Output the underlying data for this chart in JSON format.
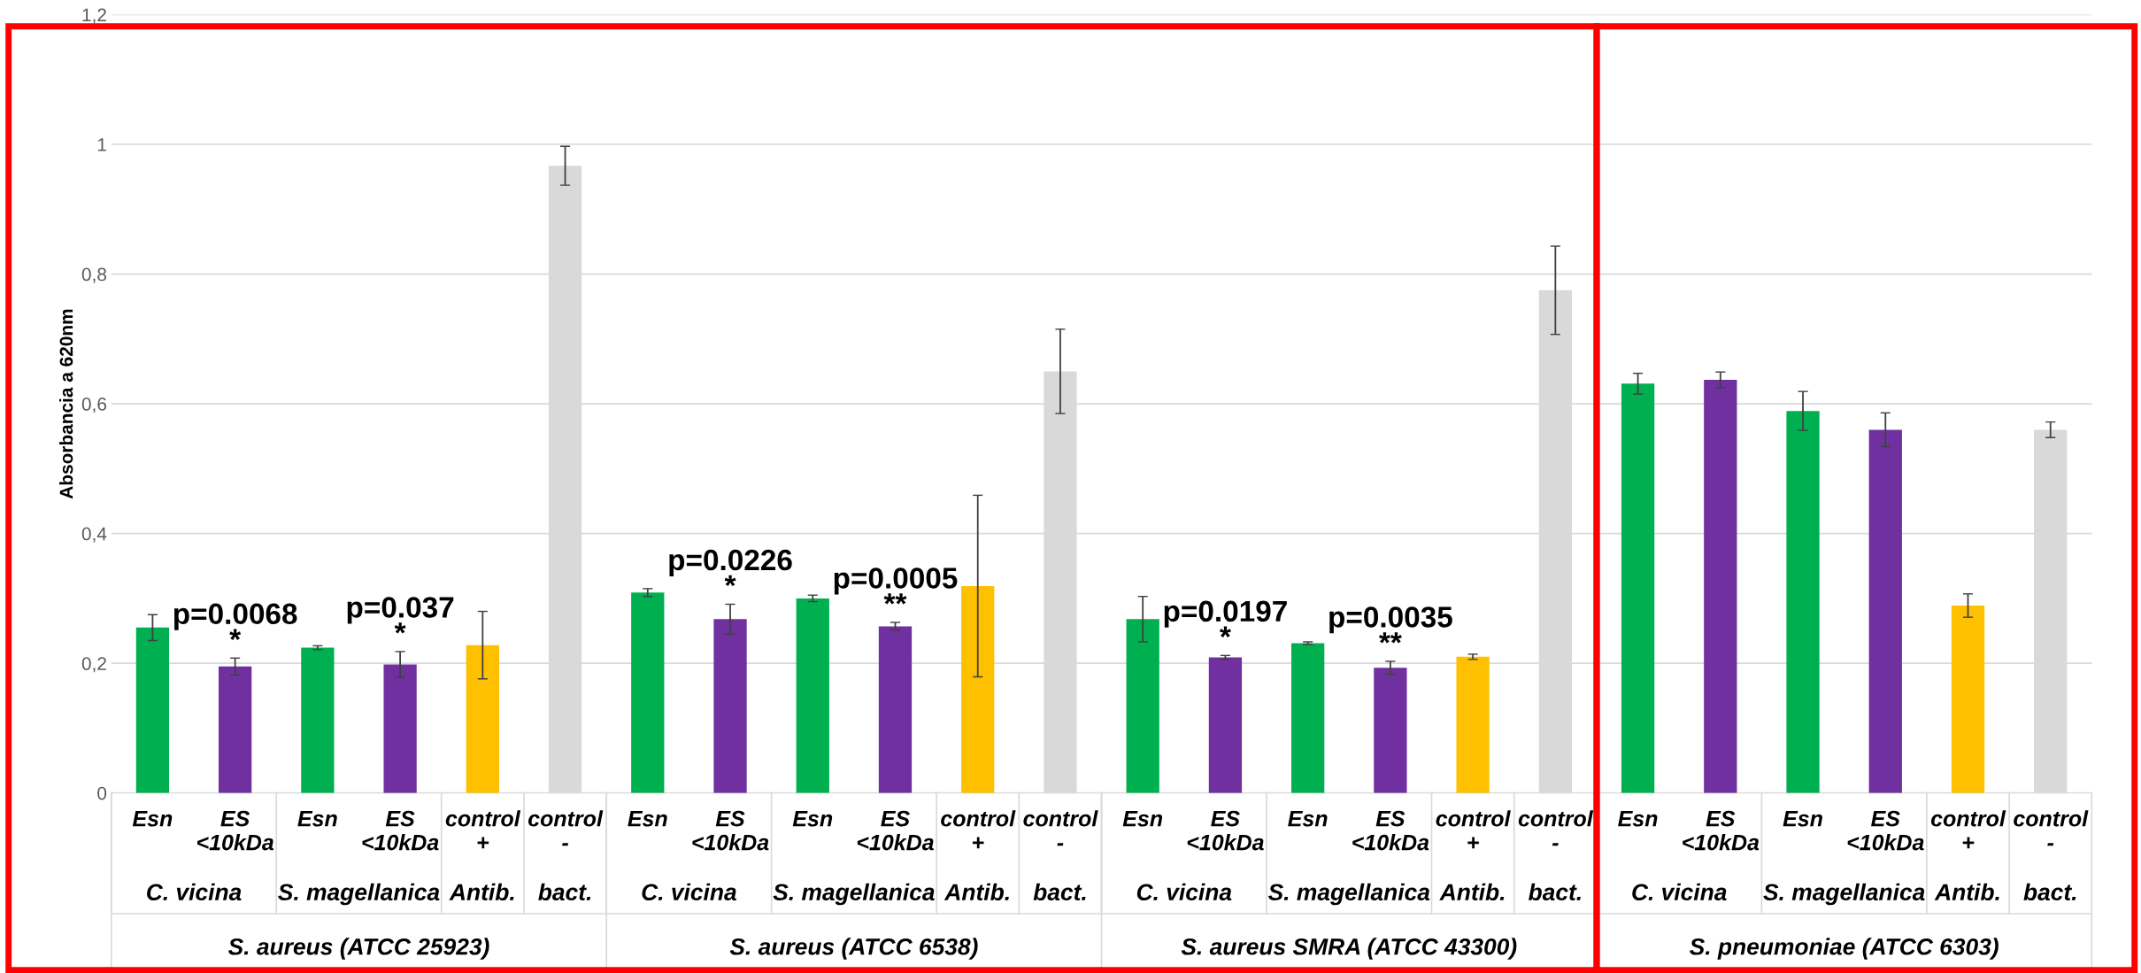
{
  "chart_data": {
    "type": "bar",
    "ylabel": "Absorbancia a 620nm",
    "categories": [
      "Esn",
      "ES\n<10kDa",
      "Esn",
      "ES\n<10kDa",
      "control\n+",
      "control\n-",
      "Esn",
      "ES\n<10kDa",
      "Esn",
      "ES\n<10kDa",
      "control\n+",
      "control\n-",
      "Esn",
      "ES\n<10kDa",
      "Esn",
      "ES\n<10kDa",
      "control\n+",
      "control\n-",
      "Esn",
      "ES\n<10kDa",
      "Esn",
      "ES\n<10kDa",
      "control\n+",
      "control\n-"
    ],
    "values": [
      0.255,
      0.195,
      0.224,
      0.198,
      0.228,
      0.967,
      0.309,
      0.268,
      0.3,
      0.257,
      0.319,
      0.65,
      0.268,
      0.209,
      0.231,
      0.193,
      0.21,
      0.775,
      0.631,
      0.637,
      0.589,
      0.56,
      0.289,
      0.56
    ],
    "errors": [
      0.02,
      0.013,
      0.003,
      0.02,
      0.052,
      0.03,
      0.006,
      0.023,
      0.005,
      0.006,
      0.14,
      0.065,
      0.035,
      0.003,
      0.002,
      0.01,
      0.004,
      0.068,
      0.016,
      0.012,
      0.03,
      0.026,
      0.018,
      0.012
    ],
    "colors": [
      "#00b050",
      "#7030a0",
      "#00b050",
      "#7030a0",
      "#ffc000",
      "#d9d9d9",
      "#00b050",
      "#7030a0",
      "#00b050",
      "#7030a0",
      "#ffc000",
      "#d9d9d9",
      "#00b050",
      "#7030a0",
      "#00b050",
      "#7030a0",
      "#ffc000",
      "#d9d9d9",
      "#00b050",
      "#7030a0",
      "#00b050",
      "#7030a0",
      "#ffc000",
      "#d9d9d9"
    ],
    "annotations": [
      "p=0.0068\n*",
      "p=0.037\n*",
      "p=0.0226\n*",
      "p=0.0005\n**",
      "p=0.0197\n*",
      "p=0.0035\n**",
      "C. vicina",
      "S. magellanica",
      "Antib.",
      "bact.",
      "C. vicina",
      "S. magellanica",
      "Antib.",
      "bact.",
      "C. vicina",
      "S. magellanica",
      "Antib.",
      "bact.",
      "C. vicina",
      "S. magellanica",
      "Antib.",
      "bact.",
      "S. aureus (ATCC 25923)",
      "S. aureus (ATCC 6538)",
      "S. aureus SMRA (ATCC 43300)",
      "S. pneumoniae (ATCC 6303)"
    ],
    "ylim": [
      0,
      1.2
    ],
    "yticks": [
      0,
      {
        "value": 0.2,
        "label": "0,2"
      },
      {
        "value": 0.4,
        "label": "0,4"
      },
      {
        "value": 0.6,
        "label": "0,6"
      },
      {
        "value": 0.8,
        "label": "0,8"
      },
      1,
      {
        "value": 1.2,
        "label": "1,2"
      }
    ],
    "grid": "y"
  }
}
